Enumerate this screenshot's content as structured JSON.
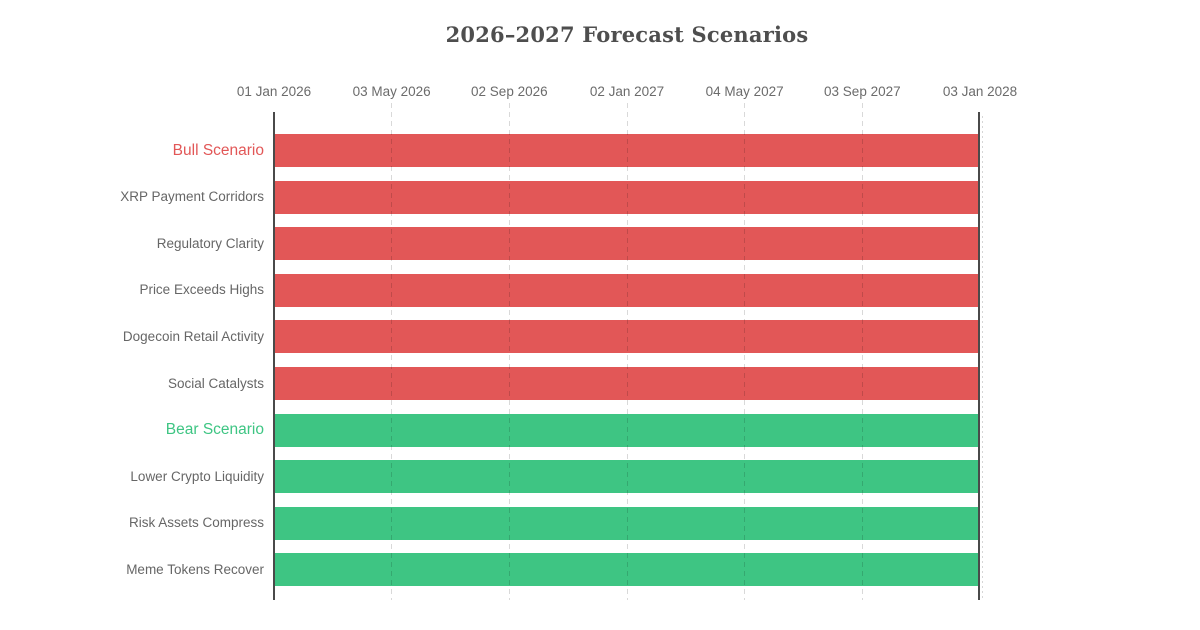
{
  "chart_data": {
    "type": "gantt",
    "title": "2026–2027 Forecast Scenarios",
    "x_ticks": [
      "01 Jan 2026",
      "03 May 2026",
      "02 Sep 2026",
      "02 Jan 2027",
      "04 May 2027",
      "03 Sep 2027",
      "03 Jan 2028"
    ],
    "x_range": [
      "01 Jan 2026",
      "03 Jan 2028"
    ],
    "grid": "vertical-dashed",
    "legend_position": "none",
    "colors": {
      "bull": "#e25757",
      "bear": "#3ec583",
      "axis_line": "#4a4a4a"
    },
    "rows": [
      {
        "label": "Bull Scenario",
        "group": "bull",
        "section": true,
        "start": "01 Jan 2026",
        "end": "03 Jan 2028"
      },
      {
        "label": "XRP Payment Corridors",
        "group": "bull",
        "section": false,
        "start": "01 Jan 2026",
        "end": "03 Jan 2028"
      },
      {
        "label": "Regulatory Clarity",
        "group": "bull",
        "section": false,
        "start": "01 Jan 2026",
        "end": "03 Jan 2028"
      },
      {
        "label": "Price Exceeds Highs",
        "group": "bull",
        "section": false,
        "start": "01 Jan 2026",
        "end": "03 Jan 2028"
      },
      {
        "label": "Dogecoin Retail Activity",
        "group": "bull",
        "section": false,
        "start": "01 Jan 2026",
        "end": "03 Jan 2028"
      },
      {
        "label": "Social Catalysts",
        "group": "bull",
        "section": false,
        "start": "01 Jan 2026",
        "end": "03 Jan 2028"
      },
      {
        "label": "Bear Scenario",
        "group": "bear",
        "section": true,
        "start": "01 Jan 2026",
        "end": "03 Jan 2028"
      },
      {
        "label": "Lower Crypto Liquidity",
        "group": "bear",
        "section": false,
        "start": "01 Jan 2026",
        "end": "03 Jan 2028"
      },
      {
        "label": "Risk Assets Compress",
        "group": "bear",
        "section": false,
        "start": "01 Jan 2026",
        "end": "03 Jan 2028"
      },
      {
        "label": "Meme Tokens Recover",
        "group": "bear",
        "section": false,
        "start": "01 Jan 2026",
        "end": "03 Jan 2028"
      }
    ]
  }
}
